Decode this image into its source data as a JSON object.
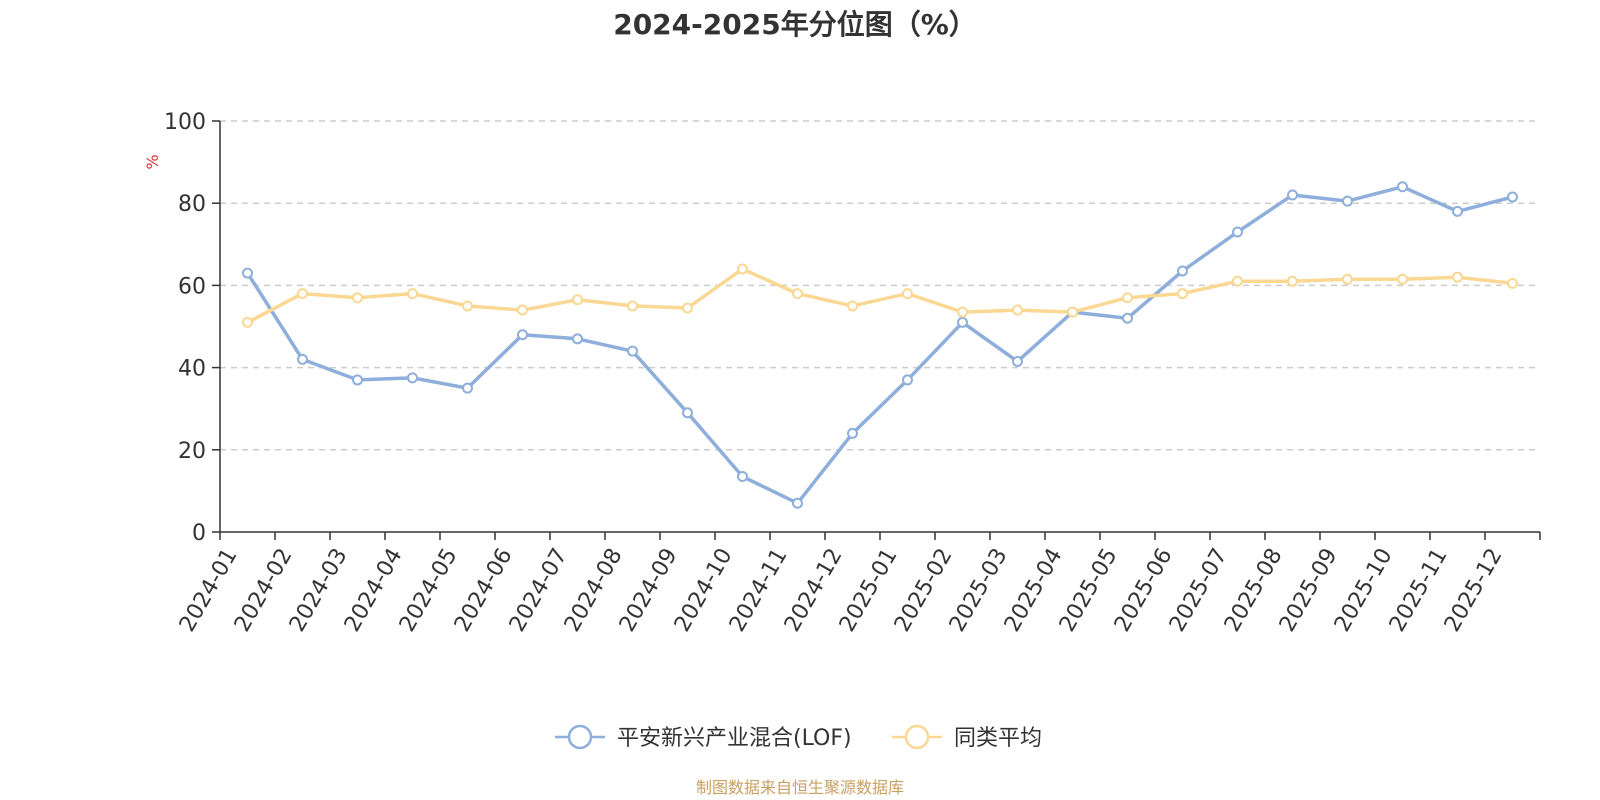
{
  "chart_data": {
    "type": "line",
    "title": "2024-2025年分位图（%）",
    "ylabel": "%",
    "xlabel": "",
    "ylim": [
      0,
      100
    ],
    "yticks": [
      0,
      20,
      40,
      60,
      80,
      100
    ],
    "grid": true,
    "legend_position": "bottom-center",
    "categories": [
      "2024-01",
      "2024-02",
      "2024-03",
      "2024-04",
      "2024-05",
      "2024-06",
      "2024-07",
      "2024-08",
      "2024-09",
      "2024-10",
      "2024-11",
      "2024-12",
      "2025-01",
      "2025-02",
      "2025-03",
      "2025-04",
      "2025-05",
      "2025-06",
      "2025-07",
      "2025-08",
      "2025-09",
      "2025-10",
      "2025-11",
      "2025-12"
    ],
    "series": [
      {
        "name": "平安新兴产业混合(LOF)",
        "color": "#8eaedb",
        "values": [
          63,
          42,
          37,
          37.5,
          35,
          48,
          47,
          44,
          29,
          13.5,
          7,
          24,
          37,
          51,
          41.5,
          53.5,
          52,
          63.5,
          73,
          82,
          80.5,
          84,
          78,
          81.5
        ]
      },
      {
        "name": "同类平均",
        "color": "#fad894",
        "values": [
          51,
          58,
          57,
          58,
          55,
          54,
          56.5,
          55,
          54.5,
          64,
          58,
          55,
          58,
          53.5,
          54,
          53.5,
          57,
          58,
          61,
          61,
          61.5,
          61.5,
          62,
          60.5
        ]
      }
    ]
  },
  "colors": {
    "unit_label": "#e03030",
    "source_text": "#c8a060",
    "axis": "#333333",
    "grid": "#cccccc"
  },
  "footer": {
    "source": "制图数据来自恒生聚源数据库"
  }
}
